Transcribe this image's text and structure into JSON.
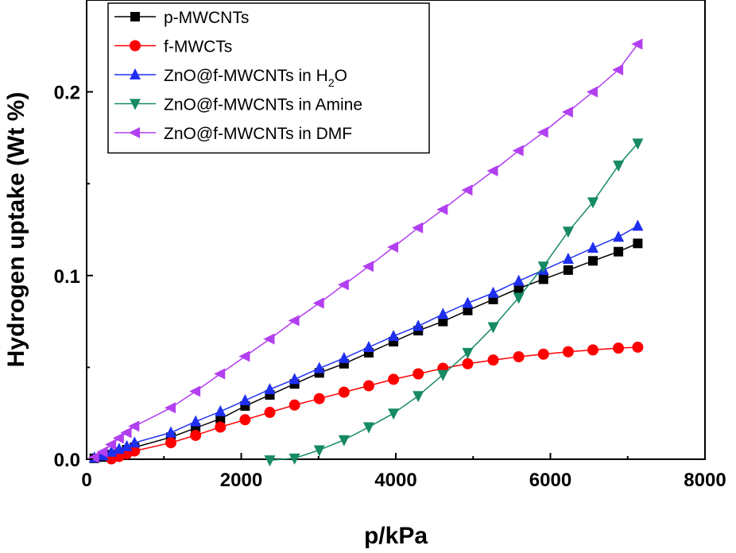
{
  "chart_data": {
    "type": "line",
    "title": "",
    "xlabel": "p/kPa",
    "ylabel": "Hydrogen uptake (Wt %)",
    "xlim": [
      0,
      8000
    ],
    "ylim": [
      0,
      0.25
    ],
    "xticks": [
      0,
      2000,
      4000,
      6000,
      8000
    ],
    "xtick_labels": [
      "0",
      "2000",
      "4000",
      "6000",
      "8000"
    ],
    "yticks": [
      0.0,
      0.1,
      0.2
    ],
    "ytick_labels": [
      "0.0",
      "0.1",
      "0.2"
    ],
    "grid": false,
    "legend_position": "top-left",
    "series": [
      {
        "name": "p-MWCNTs",
        "label_main": "p-MWCNTs",
        "label_sub": "",
        "label_tail": "",
        "color": "#000000",
        "marker": "square",
        "x": [
          100,
          210,
          320,
          420,
          520,
          620,
          1090,
          1410,
          1730,
          2050,
          2370,
          2690,
          3010,
          3330,
          3650,
          3970,
          4290,
          4610,
          4930,
          5260,
          5590,
          5910,
          6230,
          6550,
          6880,
          7130
        ],
        "y": [
          0.0005,
          0.0012,
          0.0025,
          0.0038,
          0.0052,
          0.0065,
          0.012,
          0.017,
          0.022,
          0.029,
          0.035,
          0.041,
          0.047,
          0.052,
          0.058,
          0.064,
          0.07,
          0.075,
          0.081,
          0.087,
          0.093,
          0.098,
          0.103,
          0.108,
          0.113,
          0.1175
        ]
      },
      {
        "name": "f-MWCTs",
        "label_main": "f-MWCTs",
        "label_sub": "",
        "label_tail": "",
        "color": "#ff0000",
        "marker": "circle",
        "x": [
          320,
          420,
          520,
          620,
          1090,
          1410,
          1730,
          2050,
          2370,
          2690,
          3010,
          3330,
          3650,
          3970,
          4290,
          4610,
          4930,
          5260,
          5590,
          5910,
          6230,
          6550,
          6880,
          7130
        ],
        "y": [
          0.0002,
          0.0015,
          0.003,
          0.0045,
          0.009,
          0.013,
          0.0175,
          0.0215,
          0.0255,
          0.0295,
          0.033,
          0.0365,
          0.04,
          0.0435,
          0.0465,
          0.0495,
          0.052,
          0.054,
          0.0558,
          0.0572,
          0.0585,
          0.0595,
          0.0605,
          0.061
        ]
      },
      {
        "name": "ZnO@f-MWCNTs in H2O",
        "label_main": "ZnO@f-MWCNTs in H",
        "label_sub": "2",
        "label_tail": "O",
        "color": "#1f2ff0",
        "marker": "triangle-up",
        "x": [
          100,
          210,
          320,
          420,
          520,
          620,
          1090,
          1410,
          1730,
          2050,
          2370,
          2690,
          3010,
          3330,
          3650,
          3970,
          4290,
          4610,
          4930,
          5260,
          5590,
          5910,
          6230,
          6550,
          6880,
          7130
        ],
        "y": [
          0.0008,
          0.002,
          0.004,
          0.0055,
          0.007,
          0.009,
          0.0145,
          0.0205,
          0.026,
          0.032,
          0.038,
          0.0435,
          0.0495,
          0.055,
          0.061,
          0.067,
          0.0725,
          0.079,
          0.085,
          0.0905,
          0.097,
          0.103,
          0.109,
          0.115,
          0.121,
          0.127
        ]
      },
      {
        "name": "ZnO@f-MWCNTs in Amine",
        "label_main": "ZnO@f-MWCNTs in Amine",
        "label_sub": "",
        "label_tail": "",
        "color": "#168a62",
        "marker": "triangle-down",
        "x": [
          2370,
          2690,
          3010,
          3330,
          3650,
          3970,
          4290,
          4610,
          4930,
          5260,
          5590,
          5910,
          6230,
          6550,
          6880,
          7130
        ],
        "y": [
          -0.0005,
          0.0005,
          0.005,
          0.0105,
          0.0175,
          0.025,
          0.0345,
          0.046,
          0.058,
          0.072,
          0.088,
          0.105,
          0.124,
          0.14,
          0.16,
          0.172
        ]
      },
      {
        "name": "ZnO@f-MWCNTs in DMF",
        "label_main": "ZnO@f-MWCNTs in DMF",
        "label_sub": "",
        "label_tail": "",
        "color": "#b23ff0",
        "marker": "triangle-left",
        "x": [
          100,
          210,
          320,
          420,
          520,
          620,
          1090,
          1410,
          1730,
          2050,
          2370,
          2690,
          3010,
          3330,
          3650,
          3970,
          4290,
          4610,
          4930,
          5260,
          5590,
          5910,
          6230,
          6550,
          6880,
          7130
        ],
        "y": [
          0.001,
          0.004,
          0.008,
          0.0115,
          0.0145,
          0.018,
          0.028,
          0.037,
          0.0465,
          0.056,
          0.0655,
          0.0755,
          0.085,
          0.095,
          0.105,
          0.1155,
          0.126,
          0.136,
          0.1465,
          0.157,
          0.168,
          0.178,
          0.189,
          0.2,
          0.212,
          0.226
        ]
      }
    ]
  }
}
